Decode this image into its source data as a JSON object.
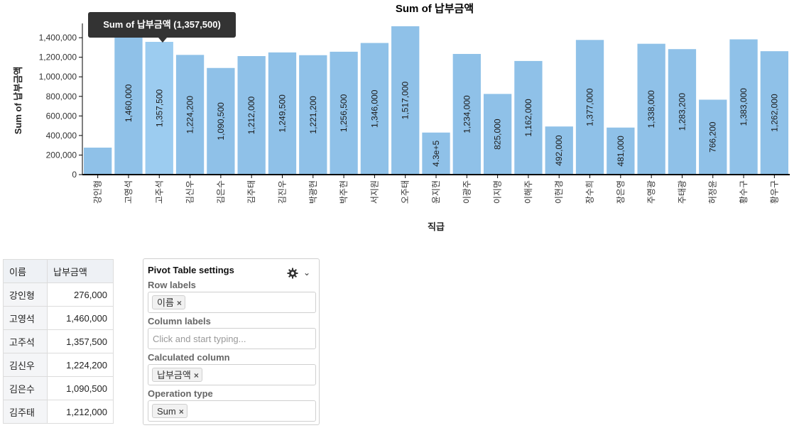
{
  "chart_data": {
    "type": "bar",
    "title": "Sum of 납부금액",
    "xlabel": "직급",
    "ylabel": "Sum of 납부금액",
    "ylim": [
      0,
      1517000
    ],
    "yticks": [
      0,
      200000,
      400000,
      600000,
      800000,
      1000000,
      1200000,
      1400000
    ],
    "ytick_labels": [
      "0",
      "200,000",
      "400,000",
      "600,000",
      "800,000",
      "1,000,000",
      "1,200,000",
      "1,400,000"
    ],
    "categories": [
      "강인형",
      "고영석",
      "고주석",
      "김신우",
      "김은수",
      "김주태",
      "김진우",
      "박광현",
      "박주현",
      "서지원",
      "오주태",
      "윤지현",
      "이광주",
      "이지명",
      "이해주",
      "이현경",
      "장수희",
      "장은영",
      "주영광",
      "주태광",
      "허정윤",
      "황수구",
      "황우구"
    ],
    "values": [
      276000,
      1460000,
      1357500,
      1224200,
      1090500,
      1212000,
      1249500,
      1221200,
      1256500,
      1346000,
      1517000,
      430000,
      1234000,
      825000,
      1162000,
      492000,
      1377000,
      481000,
      1338000,
      1283200,
      766200,
      1383000,
      1262000
    ],
    "value_labels": [
      "",
      "1,460,000",
      "1,357,500",
      "1,224,200",
      "1,090,500",
      "1,212,000",
      "1,249,500",
      "1,221,200",
      "1,256,500",
      "1,346,000",
      "1,517,000",
      "4.3e+5",
      "1,234,000",
      "825,000",
      "1,162,000",
      "492,000",
      "1,377,000",
      "481,000",
      "1,338,000",
      "1,283,200",
      "766,200",
      "1,383,000",
      "1,262,000"
    ],
    "grid": false,
    "legend": "none",
    "bar_color": "#8fc1e8",
    "hover_index": 2
  },
  "tooltip": {
    "text": "Sum of 납부금액 (1,357,500)"
  },
  "table": {
    "headers": [
      "이름",
      "납부금액"
    ],
    "rows": [
      [
        "강인형",
        "276,000"
      ],
      [
        "고영석",
        "1,460,000"
      ],
      [
        "고주석",
        "1,357,500"
      ],
      [
        "김신우",
        "1,224,200"
      ],
      [
        "김은수",
        "1,090,500"
      ],
      [
        "김주태",
        "1,212,000"
      ]
    ]
  },
  "settings": {
    "title": "Pivot Table settings",
    "row_labels": {
      "label": "Row labels",
      "chips": [
        "이름"
      ]
    },
    "column_labels": {
      "label": "Column labels",
      "placeholder": "Click and start typing..."
    },
    "calculated_column": {
      "label": "Calculated column",
      "chips": [
        "납부금액"
      ]
    },
    "operation_type": {
      "label": "Operation type",
      "chips": [
        "Sum"
      ]
    },
    "icons": [
      "gear-icon",
      "chevron-down-icon",
      "remove-icon"
    ]
  }
}
